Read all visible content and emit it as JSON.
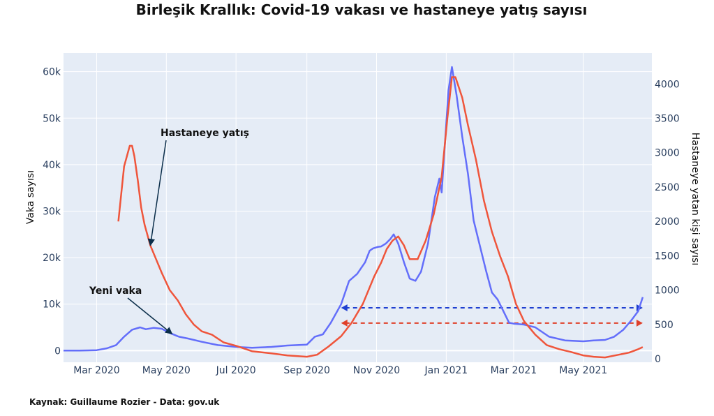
{
  "chart_data": {
    "type": "line",
    "title": "Birleşik Krallık: Covid-19 vakası ve hastaneye yatış sayısı",
    "ylabel": "Vaka sayısı",
    "y2label": "Hastaneye yatan kişi sayısı",
    "source": "Kaynak: Guillaume Rozier - Data: gov.uk",
    "xlim": [
      "2020-02-01",
      "2021-06-30"
    ],
    "ylim": [
      -2500,
      64000
    ],
    "y2lim": [
      -50,
      4450
    ],
    "yticks": [
      0,
      10000,
      20000,
      30000,
      40000,
      50000,
      60000
    ],
    "yticklabels": [
      "0",
      "10k",
      "20k",
      "30k",
      "40k",
      "50k",
      "60k"
    ],
    "y2ticks": [
      0,
      500,
      1000,
      1500,
      2000,
      2500,
      3000,
      3500,
      4000
    ],
    "y2ticklabels": [
      "0",
      "500",
      "1000",
      "1500",
      "2000",
      "2500",
      "3000",
      "3500",
      "4000"
    ],
    "xticks": [
      "2020-03-01",
      "2020-05-01",
      "2020-07-01",
      "2020-09-01",
      "2020-11-01",
      "2021-01-01",
      "2021-03-01",
      "2021-05-01"
    ],
    "xticklabels": [
      "Mar 2020",
      "May 2020",
      "Jul 2020",
      "Sep 2020",
      "Nov 2020",
      "Jan 2021",
      "Mar 2021",
      "May 2021"
    ],
    "grid": true,
    "series": [
      {
        "name": "Yeni vaka",
        "axis": "y",
        "color": "#636efa",
        "x": [
          "2020-02-01",
          "2020-02-15",
          "2020-03-01",
          "2020-03-10",
          "2020-03-18",
          "2020-03-25",
          "2020-04-01",
          "2020-04-08",
          "2020-04-13",
          "2020-04-20",
          "2020-04-27",
          "2020-05-05",
          "2020-05-12",
          "2020-05-20",
          "2020-06-01",
          "2020-06-15",
          "2020-07-01",
          "2020-07-15",
          "2020-08-01",
          "2020-08-15",
          "2020-09-01",
          "2020-09-08",
          "2020-09-15",
          "2020-09-22",
          "2020-10-01",
          "2020-10-08",
          "2020-10-15",
          "2020-10-22",
          "2020-10-26",
          "2020-10-29",
          "2020-11-02",
          "2020-11-05",
          "2020-11-09",
          "2020-11-13",
          "2020-11-16",
          "2020-11-20",
          "2020-11-25",
          "2020-11-30",
          "2020-12-05",
          "2020-12-10",
          "2020-12-16",
          "2020-12-22",
          "2020-12-26",
          "2020-12-28",
          "2020-12-31",
          "2021-01-03",
          "2021-01-06",
          "2021-01-10",
          "2021-01-15",
          "2021-01-20",
          "2021-01-25",
          "2021-01-30",
          "2021-02-05",
          "2021-02-10",
          "2021-02-15",
          "2021-02-20",
          "2021-02-25",
          "2021-03-01",
          "2021-03-10",
          "2021-03-20",
          "2021-04-01",
          "2021-04-15",
          "2021-05-01",
          "2021-05-10",
          "2021-05-20",
          "2021-05-28",
          "2021-06-05",
          "2021-06-12",
          "2021-06-18",
          "2021-06-22"
        ],
        "values": [
          0,
          0,
          100,
          500,
          1200,
          3000,
          4500,
          5000,
          4600,
          4900,
          4700,
          3700,
          3000,
          2600,
          1900,
          1200,
          800,
          600,
          800,
          1100,
          1300,
          3000,
          3500,
          6000,
          10000,
          15000,
          16500,
          19000,
          21500,
          22000,
          22300,
          22400,
          23000,
          24000,
          25000,
          23000,
          19000,
          15500,
          15000,
          17000,
          23000,
          33000,
          37000,
          34000,
          45000,
          56000,
          61000,
          55000,
          46000,
          38000,
          28000,
          23000,
          17000,
          12500,
          11000,
          8500,
          6000,
          5800,
          5600,
          5000,
          3000,
          2200,
          2000,
          2200,
          2300,
          3000,
          4500,
          6500,
          8500,
          11500
        ]
      },
      {
        "name": "Hastaneye yatış",
        "axis": "y2",
        "color": "#ef553b",
        "x": [
          "2020-03-20",
          "2020-03-25",
          "2020-03-30",
          "2020-04-01",
          "2020-04-03",
          "2020-04-06",
          "2020-04-09",
          "2020-04-12",
          "2020-04-17",
          "2020-04-22",
          "2020-04-27",
          "2020-05-04",
          "2020-05-11",
          "2020-05-18",
          "2020-05-25",
          "2020-06-01",
          "2020-06-10",
          "2020-06-20",
          "2020-07-01",
          "2020-07-15",
          "2020-08-01",
          "2020-08-15",
          "2020-09-01",
          "2020-09-10",
          "2020-09-20",
          "2020-10-01",
          "2020-10-10",
          "2020-10-20",
          "2020-10-30",
          "2020-11-05",
          "2020-11-10",
          "2020-11-15",
          "2020-11-20",
          "2020-11-25",
          "2020-11-30",
          "2020-12-07",
          "2020-12-14",
          "2020-12-21",
          "2020-12-28",
          "2021-01-02",
          "2021-01-06",
          "2021-01-09",
          "2021-01-12",
          "2021-01-15",
          "2021-01-20",
          "2021-01-27",
          "2021-02-03",
          "2021-02-10",
          "2021-02-17",
          "2021-02-24",
          "2021-03-03",
          "2021-03-10",
          "2021-03-20",
          "2021-03-30",
          "2021-04-10",
          "2021-04-20",
          "2021-05-01",
          "2021-05-10",
          "2021-05-20",
          "2021-06-01",
          "2021-06-10",
          "2021-06-18",
          "2021-06-22"
        ],
        "values": [
          2000,
          2800,
          3100,
          3100,
          2950,
          2600,
          2200,
          1950,
          1650,
          1450,
          1250,
          1000,
          850,
          650,
          500,
          400,
          350,
          240,
          190,
          110,
          80,
          50,
          30,
          60,
          180,
          330,
          520,
          800,
          1200,
          1400,
          1600,
          1720,
          1780,
          1650,
          1450,
          1450,
          1720,
          2100,
          2650,
          3500,
          4100,
          4100,
          3950,
          3800,
          3400,
          2900,
          2300,
          1850,
          1500,
          1200,
          800,
          550,
          350,
          200,
          140,
          100,
          50,
          30,
          20,
          60,
          90,
          140,
          170
        ]
      }
    ],
    "reference_lines": [
      {
        "axis": "y",
        "value": 9200,
        "from": "2020-10-01",
        "to": "2021-06-22",
        "color": "#1f3fd1",
        "style": "dashed",
        "arrows": "both"
      },
      {
        "axis": "y2",
        "value": 520,
        "from": "2020-10-01",
        "to": "2021-06-22",
        "color": "#e0402a",
        "style": "dashed",
        "arrows": "both"
      }
    ],
    "annotations": [
      {
        "text": "Hastaneye yatış",
        "series": "Hastaneye yatış",
        "point": "2020-04-17"
      },
      {
        "text": "Yeni vaka",
        "series": "Yeni vaka",
        "point": "2020-05-06"
      }
    ]
  }
}
